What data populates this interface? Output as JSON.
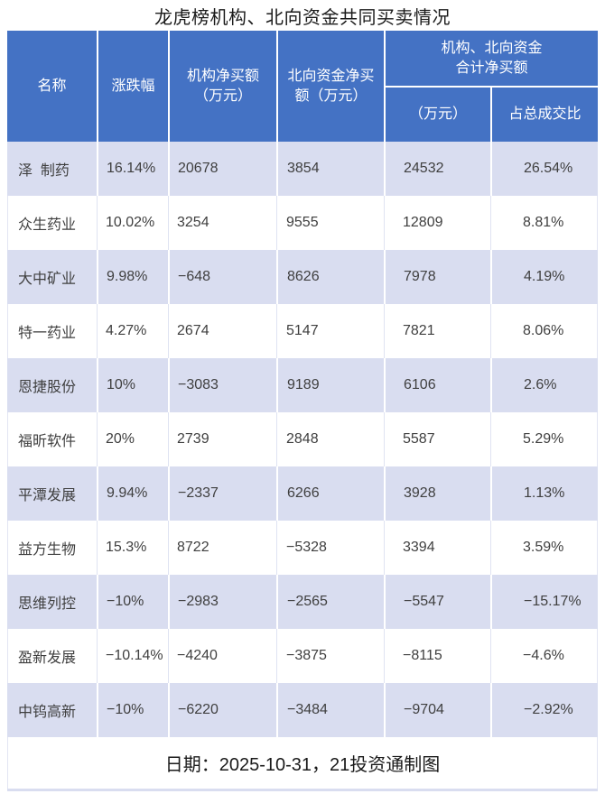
{
  "title": "龙虎榜机构、北向资金共同买卖情况",
  "colors": {
    "header_bg": "#4472C4",
    "header_text": "#FFFFFF",
    "row_alt_bg": "#D9DDF0",
    "row_bg": "#FFFFFF",
    "data_text": "#3F3F3F"
  },
  "table": {
    "headers": {
      "name": "名称",
      "change": "涨跌幅",
      "inst_net": "机构净买额\n（万元）",
      "north_net": "北向资金净买\n额（万元）",
      "combined_group": "机构、北向资金\n合计净买额",
      "combined_amount": "（万元）",
      "turnover_ratio": "占总成交比"
    },
    "rows": [
      {
        "name": "泽  制药",
        "change": "16.14%",
        "inst": "20678",
        "north": "3854",
        "total": "24532",
        "ratio": "26.54%"
      },
      {
        "name": "众生药业",
        "change": "10.02%",
        "inst": "3254",
        "north": "9555",
        "total": "12809",
        "ratio": "8.81%"
      },
      {
        "name": "大中矿业",
        "change": "9.98%",
        "inst": "−648",
        "north": "8626",
        "total": "7978",
        "ratio": "4.19%"
      },
      {
        "name": "特一药业",
        "change": "4.27%",
        "inst": "2674",
        "north": "5147",
        "total": "7821",
        "ratio": "8.06%"
      },
      {
        "name": "恩捷股份",
        "change": "10%",
        "inst": "−3083",
        "north": "9189",
        "total": "6106",
        "ratio": "2.6%"
      },
      {
        "name": "福昕软件",
        "change": "20%",
        "inst": "2739",
        "north": "2848",
        "total": "5587",
        "ratio": "5.29%"
      },
      {
        "name": "平潭发展",
        "change": "9.94%",
        "inst": "−2337",
        "north": "6266",
        "total": "3928",
        "ratio": "1.13%"
      },
      {
        "name": "益方生物",
        "change": "15.3%",
        "inst": "8722",
        "north": "−5328",
        "total": "3394",
        "ratio": "3.59%"
      },
      {
        "name": "思维列控",
        "change": "−10%",
        "inst": "−2983",
        "north": "−2565",
        "total": "−5547",
        "ratio": "−15.17%"
      },
      {
        "name": "盈新发展",
        "change": "−10.14%",
        "inst": "−4240",
        "north": "−3875",
        "total": "−8115",
        "ratio": "−4.6%"
      },
      {
        "name": "中钨高新",
        "change": "−10%",
        "inst": "−6220",
        "north": "−3484",
        "total": "−9704",
        "ratio": "−2.92%"
      }
    ],
    "footer": "日期：2025-10-31，21投资通制图"
  },
  "chart_data": {
    "type": "table",
    "title": "龙虎榜机构、北向资金共同买卖情况",
    "columns": [
      "名称",
      "涨跌幅",
      "机构净买额（万元）",
      "北向资金净买额（万元）",
      "机构、北向资金合计净买额（万元）",
      "机构、北向资金合计净买额占总成交比"
    ],
    "rows": [
      [
        "泽  制药",
        16.14,
        20678,
        3854,
        24532,
        26.54
      ],
      [
        "众生药业",
        10.02,
        3254,
        9555,
        12809,
        8.81
      ],
      [
        "大中矿业",
        9.98,
        -648,
        8626,
        7978,
        4.19
      ],
      [
        "特一药业",
        4.27,
        2674,
        5147,
        7821,
        8.06
      ],
      [
        "恩捷股份",
        10,
        -3083,
        9189,
        6106,
        2.6
      ],
      [
        "福昕软件",
        20,
        2739,
        2848,
        5587,
        5.29
      ],
      [
        "平潭发展",
        9.94,
        -2337,
        6266,
        3928,
        1.13
      ],
      [
        "益方生物",
        15.3,
        8722,
        -5328,
        3394,
        3.59
      ],
      [
        "思维列控",
        -10,
        -2983,
        -2565,
        -5547,
        -15.17
      ],
      [
        "盈新发展",
        -10.14,
        -4240,
        -3875,
        -8115,
        -4.6
      ],
      [
        "中钨高新",
        -10,
        -6220,
        -3484,
        -9704,
        -2.92
      ]
    ],
    "note": "单位：万元；日期：2025-10-31"
  }
}
